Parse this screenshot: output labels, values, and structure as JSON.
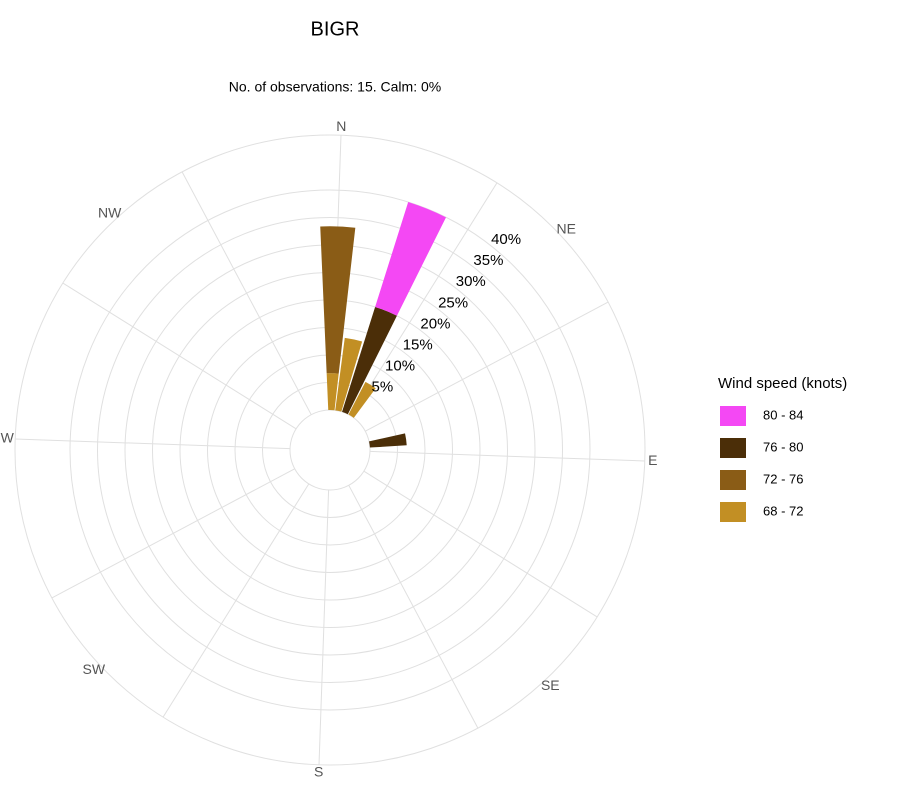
{
  "chart_data": {
    "type": "windrose",
    "title": "BIGR",
    "subtitle": "No. of observations: 15. Calm: 0%",
    "compass": [
      "N",
      "NE",
      "E",
      "SE",
      "S",
      "SW",
      "W",
      "NW"
    ],
    "x": [
      0,
      10,
      20,
      30,
      80
    ],
    "series": [
      {
        "name": "68 - 72",
        "color": "#c28f24",
        "values": [
          6.7,
          13.3,
          0,
          6.7,
          0
        ]
      },
      {
        "name": "72 - 76",
        "color": "#8a5c16",
        "values": [
          26.7,
          0,
          0,
          0,
          0
        ]
      },
      {
        "name": "76 - 80",
        "color": "#4b2e08",
        "values": [
          0,
          0,
          20,
          0,
          6.7
        ]
      },
      {
        "name": "80 - 84",
        "color": "#f448f4",
        "values": [
          0,
          0,
          20,
          0,
          0
        ]
      }
    ],
    "legend_title": "Wind speed (knots)",
    "ylim": [
      0,
      50
    ],
    "yticks": [
      {
        "value": 5,
        "label": "5%"
      },
      {
        "value": 10,
        "label": "10%"
      },
      {
        "value": 15,
        "label": "15%"
      },
      {
        "value": 20,
        "label": "20%"
      },
      {
        "value": 25,
        "label": "25%"
      },
      {
        "value": 30,
        "label": "30%"
      },
      {
        "value": 35,
        "label": "35%"
      },
      {
        "value": 40,
        "label": "40%"
      }
    ],
    "grid": true
  }
}
